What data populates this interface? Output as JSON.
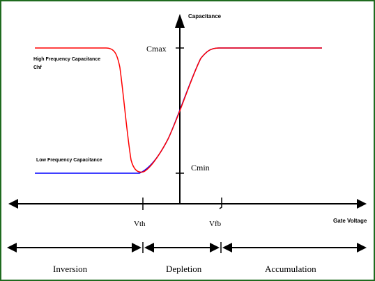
{
  "chart_data": {
    "type": "line",
    "title": "",
    "xlabel": "Gate Voltage",
    "ylabel": "Capacitance",
    "x_ticks": [
      "Vth",
      "Vfb"
    ],
    "y_ticks": [
      "Cmax",
      "Cmin"
    ],
    "series": [
      {
        "name": "High Frequency Capacitance Chf",
        "color": "#ff0000",
        "points": [
          [
            -1.0,
            1.0
          ],
          [
            -0.6,
            1.0
          ],
          [
            -0.45,
            0.5
          ],
          [
            -0.35,
            0.05
          ],
          [
            -0.25,
            0.0
          ],
          [
            0.0,
            0.6
          ],
          [
            0.25,
            1.0
          ],
          [
            1.0,
            1.0
          ]
        ]
      },
      {
        "name": "Low Frequency Capacitance",
        "color": "#0000ff",
        "points": [
          [
            -1.0,
            0.0
          ],
          [
            -0.25,
            0.0
          ],
          [
            0.0,
            0.6
          ],
          [
            0.25,
            1.0
          ],
          [
            1.0,
            1.0
          ]
        ]
      }
    ],
    "regions": [
      "Inversion",
      "Depletion",
      "Accumulation"
    ],
    "grid": false
  }
}
